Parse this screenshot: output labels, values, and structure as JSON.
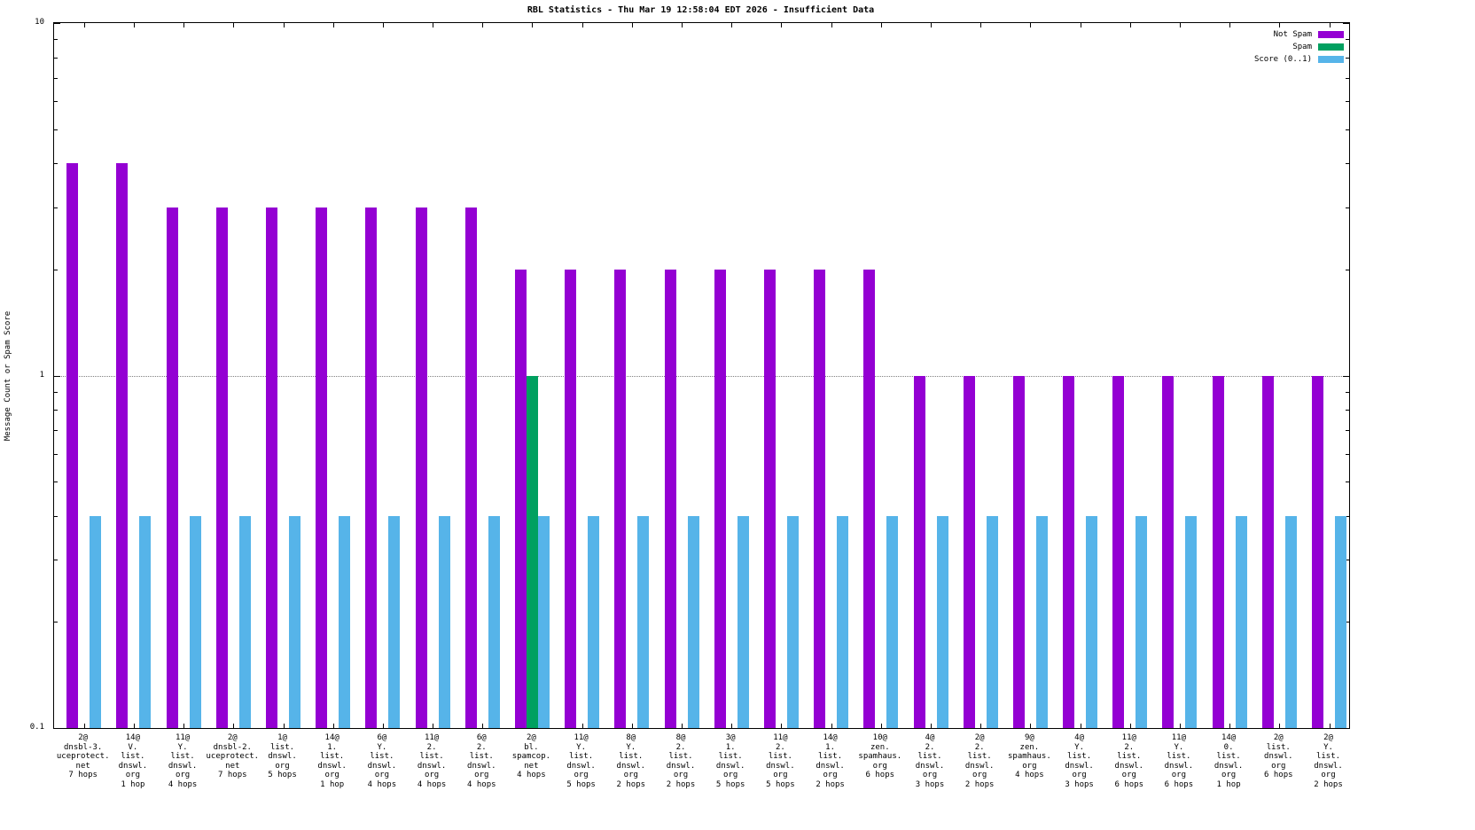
{
  "chart_data": {
    "type": "bar",
    "title": "RBL Statistics - Thu Mar 19 12:58:04 EDT 2026 - Insufficient Data",
    "ylabel": "Message Count or Spam Score",
    "xlabel": "",
    "yscale": "log",
    "ylim": [
      0.1,
      10
    ],
    "grid": "dotted line at y=1",
    "legend_position": "top-right",
    "y_ticks": [
      {
        "label": "10",
        "value": 10
      },
      {
        "label": "1",
        "value": 1
      },
      {
        "label": "0.1",
        "value": 0.1
      }
    ],
    "categories": [
      "2@ dnsbl-3.uceprotect.net 7 hops",
      "14@ V.list.dnswl.org 1 hop",
      "11@ Y.list.dnswl.org 4 hops",
      "2@ dnsbl-2.uceprotect.net 7 hops",
      "1@ list.dnswl.org 5 hops",
      "14@ 1.list.dnswl.org 1 hop",
      "6@ Y.list.dnswl.org 4 hops",
      "11@ 2.list.dnswl.org 4 hops",
      "6@ 2.list.dnswl.org 4 hops",
      "2@ bl.spamcop.net 4 hops",
      "11@ Y.list.dnswl.org 5 hops",
      "8@ Y.list.dnswl.org 2 hops",
      "8@ 2.list.dnswl.org 2 hops",
      "3@ 1.list.dnswl.org 5 hops",
      "11@ 2.list.dnswl.org 5 hops",
      "14@ 1.list.dnswl.org 2 hops",
      "10@ zen.spamhaus.org 6 hops",
      "4@ 2.list.dnswl.org 3 hops",
      "2@ 2.list.dnswl.org 2 hops",
      "9@ zen.spamhaus.org 4 hops",
      "4@ Y.list.dnswl.org 3 hops",
      "11@ 2.list.dnswl.org 6 hops",
      "11@ Y.list.dnswl.org 6 hops",
      "14@ 0.list.dnswl.org 1 hop",
      "2@ list.dnswl.org 6 hops",
      "2@ Y.list.dnswl.org 2 hops"
    ],
    "category_label_lines": [
      [
        "2@",
        "dnsbl-3.",
        "uceprotect.",
        "net",
        "7 hops"
      ],
      [
        "14@",
        "V.",
        "list.",
        "dnswl.",
        "org",
        "1 hop"
      ],
      [
        "11@",
        "Y.",
        "list.",
        "dnswl.",
        "org",
        "4 hops"
      ],
      [
        "2@",
        "dnsbl-2.",
        "uceprotect.",
        "net",
        "7 hops"
      ],
      [
        "1@",
        "list.",
        "dnswl.",
        "org",
        "5 hops"
      ],
      [
        "14@",
        "1.",
        "list.",
        "dnswl.",
        "org",
        "1 hop"
      ],
      [
        "6@",
        "Y.",
        "list.",
        "dnswl.",
        "org",
        "4 hops"
      ],
      [
        "11@",
        "2.",
        "list.",
        "dnswl.",
        "org",
        "4 hops"
      ],
      [
        "6@",
        "2.",
        "list.",
        "dnswl.",
        "org",
        "4 hops"
      ],
      [
        "2@",
        "bl.",
        "spamcop.",
        "net",
        "4 hops"
      ],
      [
        "11@",
        "Y.",
        "list.",
        "dnswl.",
        "org",
        "5 hops"
      ],
      [
        "8@",
        "Y.",
        "list.",
        "dnswl.",
        "org",
        "2 hops"
      ],
      [
        "8@",
        "2.",
        "list.",
        "dnswl.",
        "org",
        "2 hops"
      ],
      [
        "3@",
        "1.",
        "list.",
        "dnswl.",
        "org",
        "5 hops"
      ],
      [
        "11@",
        "2.",
        "list.",
        "dnswl.",
        "org",
        "5 hops"
      ],
      [
        "14@",
        "1.",
        "list.",
        "dnswl.",
        "org",
        "2 hops"
      ],
      [
        "10@",
        "zen.",
        "spamhaus.",
        "org",
        "6 hops"
      ],
      [
        "4@",
        "2.",
        "list.",
        "dnswl.",
        "org",
        "3 hops"
      ],
      [
        "2@",
        "2.",
        "list.",
        "dnswl.",
        "org",
        "2 hops"
      ],
      [
        "9@",
        "zen.",
        "spamhaus.",
        "org",
        "4 hops"
      ],
      [
        "4@",
        "Y.",
        "list.",
        "dnswl.",
        "org",
        "3 hops"
      ],
      [
        "11@",
        "2.",
        "list.",
        "dnswl.",
        "org",
        "6 hops"
      ],
      [
        "11@",
        "Y.",
        "list.",
        "dnswl.",
        "org",
        "6 hops"
      ],
      [
        "14@",
        "0.",
        "list.",
        "dnswl.",
        "org",
        "1 hop"
      ],
      [
        "2@",
        "list.",
        "dnswl.",
        "org",
        "6 hops"
      ],
      [
        "2@",
        "Y.",
        "list.",
        "dnswl.",
        "org",
        "2 hops"
      ]
    ],
    "series": [
      {
        "name": "Not Spam",
        "color": "#9400d3",
        "values": [
          4,
          4,
          3,
          3,
          3,
          3,
          3,
          3,
          3,
          2,
          2,
          2,
          2,
          2,
          2,
          2,
          2,
          1,
          1,
          1,
          1,
          1,
          1,
          1,
          1,
          1
        ]
      },
      {
        "name": "Spam",
        "color": "#00a060",
        "values": [
          0,
          0,
          0,
          0,
          0,
          0,
          0,
          0,
          0,
          1,
          0,
          0,
          0,
          0,
          0,
          0,
          0,
          0,
          0,
          0,
          0,
          0,
          0,
          0,
          0,
          0
        ]
      },
      {
        "name": "Score (0..1)",
        "color": "#56b4e9",
        "values": [
          0.4,
          0.4,
          0.4,
          0.4,
          0.4,
          0.4,
          0.4,
          0.4,
          0.4,
          0.4,
          0.4,
          0.4,
          0.4,
          0.4,
          0.4,
          0.4,
          0.4,
          0.4,
          0.4,
          0.4,
          0.4,
          0.4,
          0.4,
          0.4,
          0.4,
          0.4
        ]
      }
    ]
  }
}
